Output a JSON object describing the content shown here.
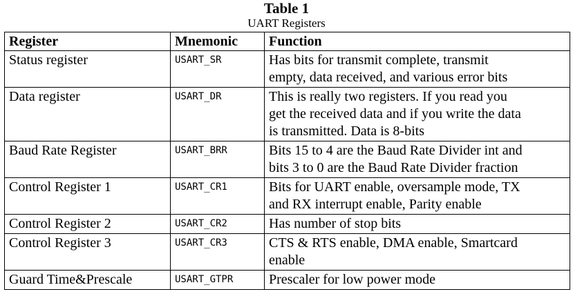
{
  "caption": {
    "title": "Table 1",
    "subtitle": "UART Registers"
  },
  "table": {
    "headers": [
      "Register",
      "Mnemonic",
      "Function"
    ],
    "rows": [
      {
        "register": "Status register",
        "mnemonic": "USART_SR",
        "function_lines": [
          "Has bits for transmit complete, transmit",
          "empty, data received, and various error bits"
        ]
      },
      {
        "register": "Data register",
        "mnemonic": "USART_DR",
        "function_lines": [
          "This is really two registers.  If you read you",
          "get the received data and if you write the data",
          "is transmitted.  Data is 8-bits"
        ]
      },
      {
        "register": "Baud Rate Register",
        "mnemonic": "USART_BRR",
        "function_lines": [
          "Bits 15 to 4 are the Baud Rate Divider int and",
          "bits 3 to 0 are the Baud Rate Divider fraction"
        ]
      },
      {
        "register": "Control Register 1",
        "mnemonic": "USART_CR1",
        "function_lines": [
          "Bits for UART enable, oversample mode, TX",
          "and RX interrupt enable, Parity enable"
        ]
      },
      {
        "register": "Control Register 2",
        "mnemonic": "USART_CR2",
        "function_lines": [
          "Has number of stop bits"
        ]
      },
      {
        "register": "Control Register 3",
        "mnemonic": "USART_CR3",
        "function_lines": [
          "CTS & RTS enable, DMA enable, Smartcard",
          "enable"
        ]
      },
      {
        "register": "Guard Time&Prescale",
        "mnemonic": "USART_GTPR",
        "function_lines": [
          "Prescaler for low power mode"
        ]
      }
    ]
  }
}
